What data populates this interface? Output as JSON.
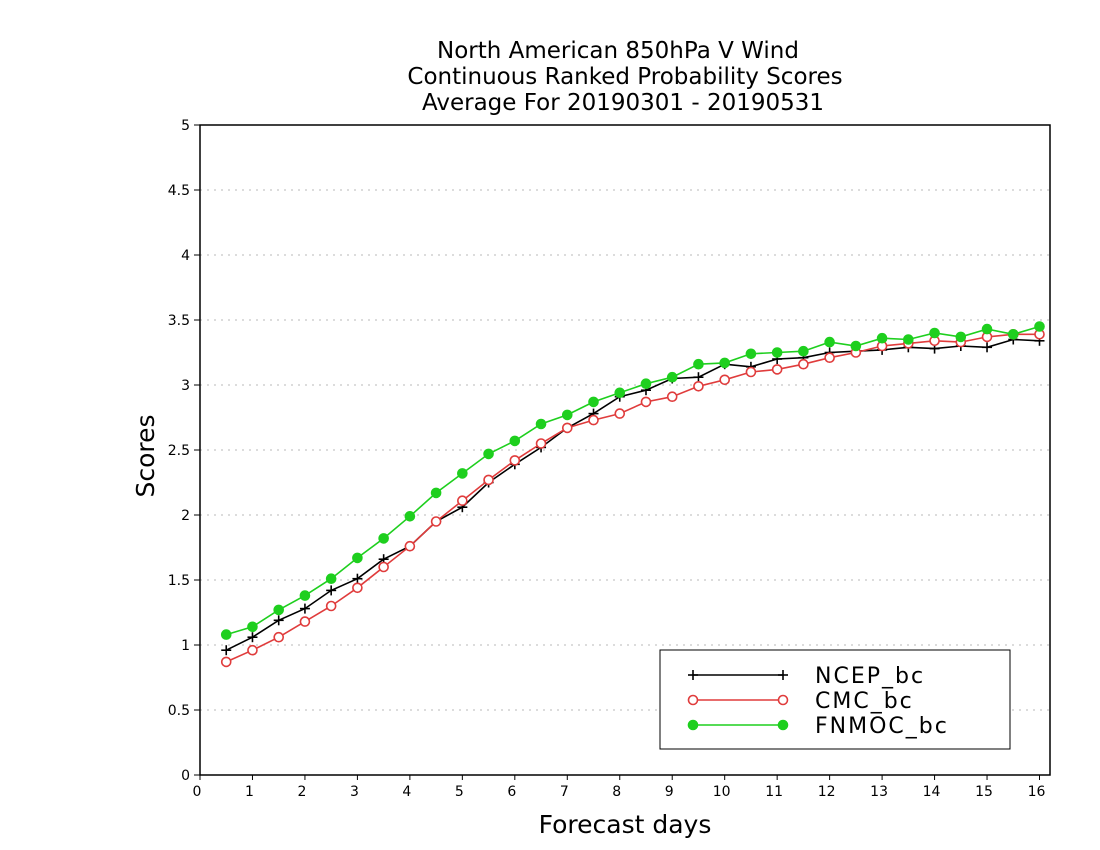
{
  "chart_data": {
    "type": "line",
    "title": [
      "North American 850hPa V Wind",
      "Continuous Ranked Probability Scores",
      "Average For 20190301 - 20190531"
    ],
    "xlabel": "Forecast days",
    "ylabel": "Scores",
    "xlim": [
      0,
      16.2
    ],
    "ylim": [
      0,
      5
    ],
    "xticks": [
      0,
      1,
      2,
      3,
      4,
      5,
      6,
      7,
      8,
      9,
      10,
      11,
      12,
      13,
      14,
      15,
      16
    ],
    "yticks": [
      0,
      0.5,
      1,
      1.5,
      2,
      2.5,
      3,
      3.5,
      4,
      4.5,
      5
    ],
    "grid": true,
    "legend_position": "bottom-right",
    "x": [
      0.5,
      1,
      1.5,
      2,
      2.5,
      3,
      3.5,
      4,
      4.5,
      5,
      5.5,
      6,
      6.5,
      7,
      7.5,
      8,
      8.5,
      9,
      9.5,
      10,
      10.5,
      11,
      11.5,
      12,
      12.5,
      13,
      13.5,
      14,
      14.5,
      15,
      15.5,
      16
    ],
    "series": [
      {
        "name": "NCEP_bc",
        "color": "#000000",
        "marker": "plus",
        "values": [
          0.96,
          1.06,
          1.19,
          1.28,
          1.42,
          1.51,
          1.66,
          1.76,
          1.95,
          2.06,
          2.25,
          2.39,
          2.52,
          2.67,
          2.78,
          2.91,
          2.96,
          3.05,
          3.06,
          3.16,
          3.14,
          3.2,
          3.21,
          3.25,
          3.26,
          3.27,
          3.29,
          3.28,
          3.3,
          3.29,
          3.35,
          3.34
        ]
      },
      {
        "name": "CMC_bc",
        "color": "#e03c3c",
        "marker": "open-circle",
        "values": [
          0.87,
          0.96,
          1.06,
          1.18,
          1.3,
          1.44,
          1.6,
          1.76,
          1.95,
          2.11,
          2.27,
          2.42,
          2.55,
          2.67,
          2.73,
          2.78,
          2.87,
          2.91,
          2.99,
          3.04,
          3.1,
          3.12,
          3.16,
          3.21,
          3.25,
          3.3,
          3.32,
          3.34,
          3.33,
          3.37,
          3.39,
          3.39
        ]
      },
      {
        "name": "FNMOC_bc",
        "color": "#1ecf1e",
        "marker": "filled-circle",
        "values": [
          1.08,
          1.14,
          1.27,
          1.38,
          1.51,
          1.67,
          1.82,
          1.99,
          2.17,
          2.32,
          2.47,
          2.57,
          2.7,
          2.77,
          2.87,
          2.94,
          3.01,
          3.06,
          3.16,
          3.17,
          3.24,
          3.25,
          3.26,
          3.33,
          3.3,
          3.36,
          3.35,
          3.4,
          3.37,
          3.43,
          3.39,
          3.45
        ]
      }
    ]
  }
}
